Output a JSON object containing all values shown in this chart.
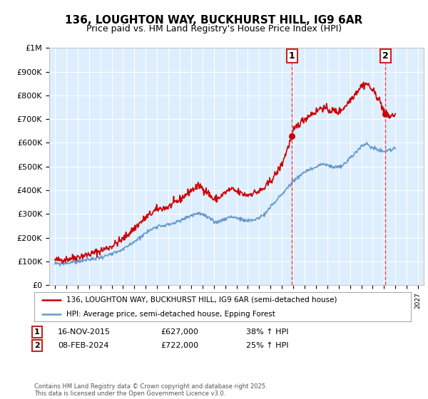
{
  "title": "136, LOUGHTON WAY, BUCKHURST HILL, IG9 6AR",
  "subtitle": "Price paid vs. HM Land Registry's House Price Index (HPI)",
  "red_label": "136, LOUGHTON WAY, BUCKHURST HILL, IG9 6AR (semi-detached house)",
  "blue_label": "HPI: Average price, semi-detached house, Epping Forest",
  "annotation1_date": "16-NOV-2015",
  "annotation1_price": "£627,000",
  "annotation1_hpi": "38% ↑ HPI",
  "annotation1_year": 2015.88,
  "annotation1_value": 627000,
  "annotation2_date": "08-FEB-2024",
  "annotation2_price": "£722,000",
  "annotation2_hpi": "25% ↑ HPI",
  "annotation2_year": 2024.12,
  "annotation2_value": 722000,
  "footer": "Contains HM Land Registry data © Crown copyright and database right 2025.\nThis data is licensed under the Open Government Licence v3.0.",
  "ylim": [
    0,
    1000000
  ],
  "yticks": [
    0,
    100000,
    200000,
    300000,
    400000,
    500000,
    600000,
    700000,
    800000,
    900000,
    1000000
  ],
  "xlim_start": 1994.5,
  "xlim_end": 2027.5,
  "red_color": "#cc0000",
  "blue_color": "#6699cc",
  "bg_color": "#ddeeff",
  "grid_color": "#ffffff",
  "vline_color": "#ff4444"
}
